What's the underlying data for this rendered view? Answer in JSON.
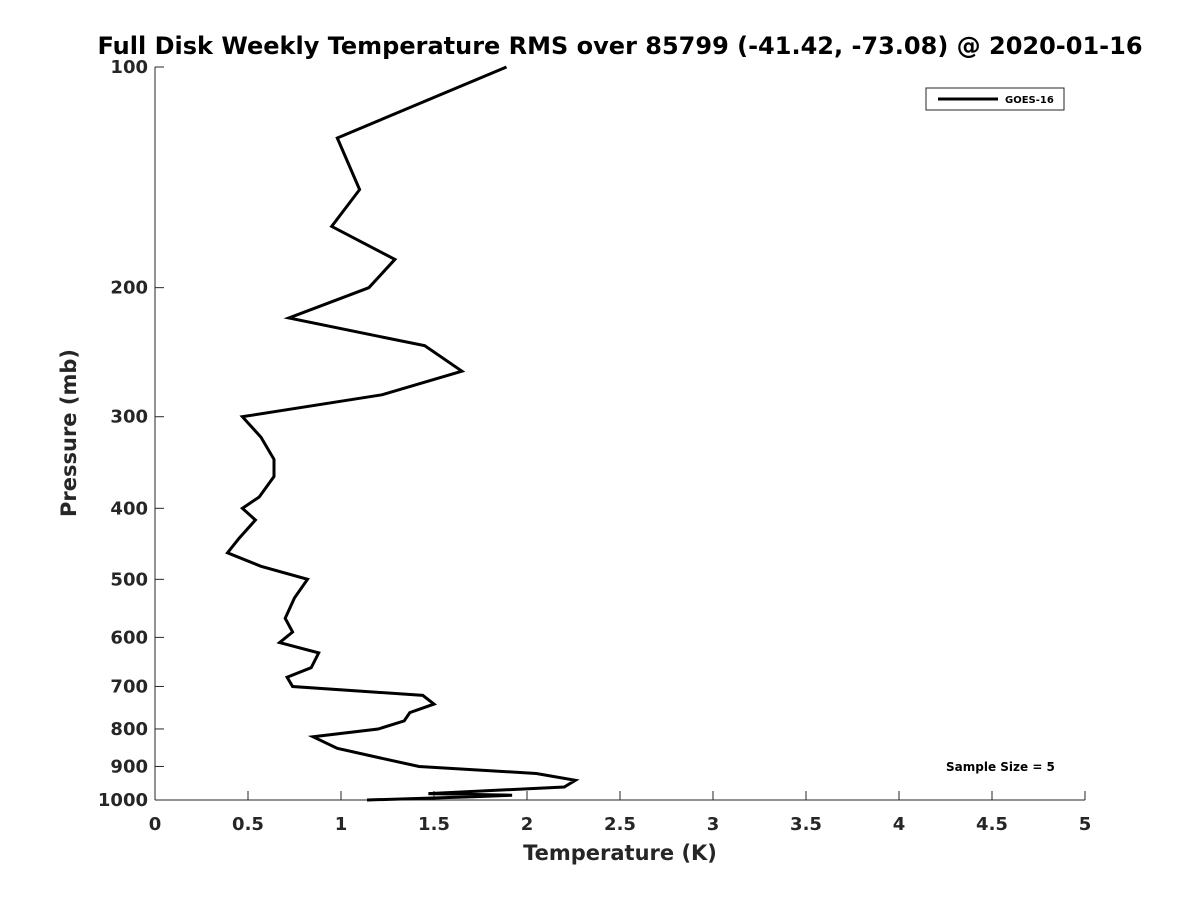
{
  "chart_data": {
    "type": "line",
    "title": "Full Disk Weekly Temperature RMS over 85799 (-41.42, -73.08) @ 2020-01-16",
    "xlabel": "Temperature (K)",
    "ylabel": "Pressure (mb)",
    "xlim": [
      0,
      5
    ],
    "ylim": [
      1000,
      100
    ],
    "y_scale": "log",
    "y_reversed": true,
    "x_ticks": [
      "0",
      "0.5",
      "1",
      "1.5",
      "2",
      "2.5",
      "3",
      "3.5",
      "4",
      "4.5",
      "5"
    ],
    "y_ticks": [
      "100",
      "200",
      "300",
      "400",
      "500",
      "600",
      "700",
      "800",
      "900",
      "1000"
    ],
    "grid": false,
    "legend_position": "top-right",
    "annotation": "Sample Size = 5",
    "series": [
      {
        "name": "GOES-16",
        "color": "#000000",
        "points": [
          [
            1.89,
            100
          ],
          [
            0.98,
            125
          ],
          [
            1.1,
            147
          ],
          [
            0.95,
            165
          ],
          [
            1.29,
            183
          ],
          [
            1.15,
            200
          ],
          [
            0.72,
            220
          ],
          [
            1.45,
            240
          ],
          [
            1.65,
            260
          ],
          [
            1.22,
            280
          ],
          [
            0.47,
            300
          ],
          [
            0.57,
            320
          ],
          [
            0.64,
            343
          ],
          [
            0.64,
            362
          ],
          [
            0.56,
            386
          ],
          [
            0.47,
            400
          ],
          [
            0.54,
            415
          ],
          [
            0.45,
            440
          ],
          [
            0.39,
            460
          ],
          [
            0.57,
            480
          ],
          [
            0.82,
            500
          ],
          [
            0.75,
            530
          ],
          [
            0.7,
            565
          ],
          [
            0.74,
            590
          ],
          [
            0.67,
            610
          ],
          [
            0.88,
            630
          ],
          [
            0.84,
            660
          ],
          [
            0.71,
            680
          ],
          [
            0.74,
            700
          ],
          [
            1.44,
            720
          ],
          [
            1.5,
            740
          ],
          [
            1.37,
            760
          ],
          [
            1.34,
            780
          ],
          [
            1.2,
            800
          ],
          [
            0.85,
            820
          ],
          [
            0.98,
            850
          ],
          [
            1.2,
            875
          ],
          [
            1.42,
            900
          ],
          [
            2.05,
            920
          ],
          [
            2.26,
            940
          ],
          [
            2.2,
            960
          ],
          [
            1.47,
            980
          ],
          [
            1.92,
            985
          ],
          [
            1.71,
            990
          ],
          [
            1.14,
            1000
          ]
        ]
      }
    ]
  }
}
